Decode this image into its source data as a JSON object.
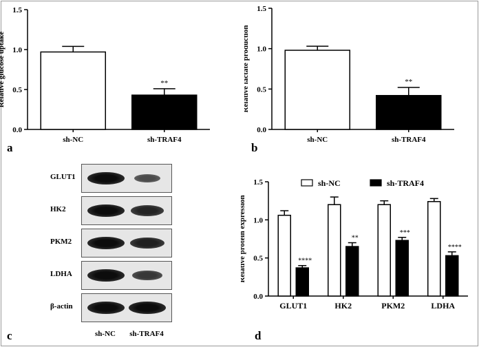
{
  "panels": {
    "a": {
      "letter": "a"
    },
    "b": {
      "letter": "b"
    },
    "c": {
      "letter": "c"
    },
    "d": {
      "letter": "d"
    }
  },
  "blot": {
    "rows": [
      {
        "label": "GLUT1",
        "intensity": [
          1.0,
          0.35
        ]
      },
      {
        "label": "HK2",
        "intensity": [
          1.0,
          0.75
        ]
      },
      {
        "label": "PKM2",
        "intensity": [
          1.0,
          0.8
        ]
      },
      {
        "label": "LDHA",
        "intensity": [
          1.0,
          0.55
        ]
      },
      {
        "label": "β-actin",
        "intensity": [
          1.0,
          1.0
        ]
      }
    ],
    "lanes": [
      "sh-NC",
      "sh-TRAF4"
    ]
  },
  "chart_data": [
    {
      "type": "bar",
      "ylabel": "Relative glucose uptake",
      "categories": [
        "sh-NC",
        "sh-TRAF4"
      ],
      "values": [
        0.97,
        0.43
      ],
      "errors": [
        0.07,
        0.08
      ],
      "significance": [
        "",
        "**"
      ],
      "ylim": [
        0,
        1.5
      ],
      "yticks": [
        "0.0",
        "0.5",
        "1.0",
        "1.5"
      ],
      "fills": [
        "#ffffff",
        "#000000"
      ]
    },
    {
      "type": "bar",
      "ylabel": "Relative lactate production",
      "categories": [
        "sh-NC",
        "sh-TRAF4"
      ],
      "values": [
        0.98,
        0.42
      ],
      "errors": [
        0.05,
        0.1
      ],
      "significance": [
        "",
        "**"
      ],
      "ylim": [
        0,
        1.5
      ],
      "yticks": [
        "0.0",
        "0.5",
        "1.0",
        "1.5"
      ],
      "fills": [
        "#ffffff",
        "#000000"
      ]
    },
    {
      "type": "bar",
      "ylabel": "Relative protein expression",
      "categories": [
        "GLUT1",
        "HK2",
        "PKM2",
        "LDHA"
      ],
      "series": [
        {
          "name": "sh-NC",
          "values": [
            1.06,
            1.2,
            1.2,
            1.24
          ],
          "errors": [
            0.06,
            0.1,
            0.05,
            0.04
          ],
          "significance": [
            "",
            "",
            "",
            ""
          ]
        },
        {
          "name": "sh-TRAF4",
          "values": [
            0.37,
            0.65,
            0.73,
            0.53
          ],
          "errors": [
            0.03,
            0.05,
            0.04,
            0.05
          ],
          "significance": [
            "****",
            "**",
            "***",
            "****"
          ]
        }
      ],
      "ylim": [
        0,
        1.5
      ],
      "yticks": [
        "0.0",
        "0.5",
        "1.0",
        "1.5"
      ],
      "legend": "top",
      "fills": [
        "#ffffff",
        "#000000"
      ]
    }
  ]
}
